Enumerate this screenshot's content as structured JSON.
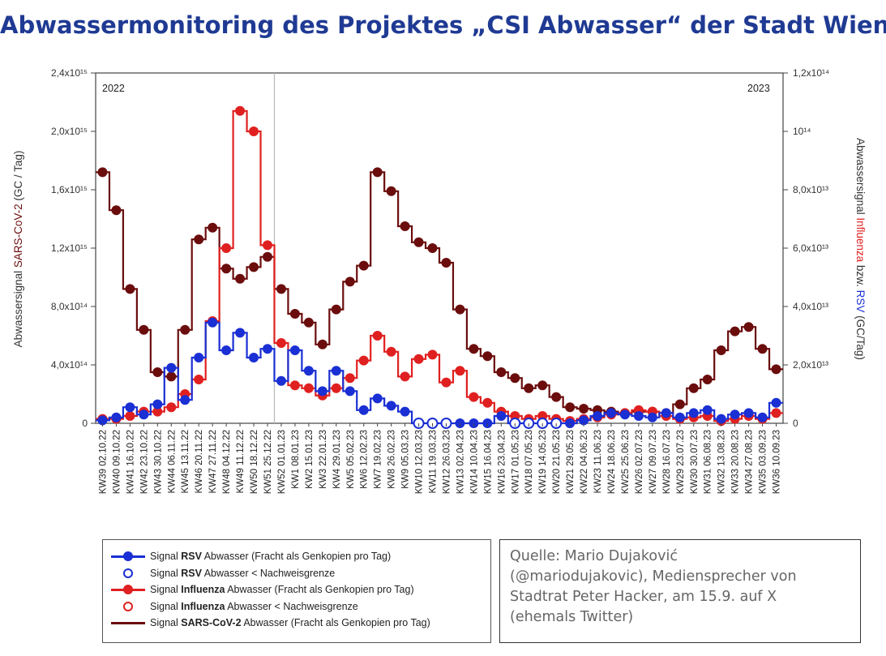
{
  "title": "Abwassermonitoring des Projektes „CSI Abwasser“ der Stadt Wien",
  "colors": {
    "rsv": "#1a2fd4",
    "influenza": "#e02020",
    "sars": "#6b0d0d",
    "title": "#1f3a93"
  },
  "chart_data": {
    "type": "line",
    "step": true,
    "categories": [
      "KW39 02.10.22",
      "KW40 09.10.22",
      "KW41 16.10.22",
      "KW42 23.10.22",
      "KW43 30.10.22",
      "KW44 06.11.22",
      "KW45 13.11.22",
      "KW46 20.11.22",
      "KW47 27.11.22",
      "KW48 04.12.22",
      "KW49 11.12.22",
      "KW50 18.12.22",
      "KW51 25.12.22",
      "KW52 01.01.23",
      "KW1 08.01.23",
      "KW2 15.01.23",
      "KW3 22.01.23",
      "KW4 29.01.23",
      "KW5 05.02.23",
      "KW6 12.02.23",
      "KW7 19.02.23",
      "KW8 26.02.23",
      "KW9 05.03.23",
      "KW10 12.03.23",
      "KW11 19.03.23",
      "KW12 26.03.23",
      "KW13 02.04.23",
      "KW14 10.04.23",
      "KW15 16.04.23",
      "KW16 23.04.23",
      "KW17 01.05.23",
      "KW18 07.05.23",
      "KW19 14.05.23",
      "KW20 21.05.23",
      "KW21 29.05.23",
      "KW22 04.06.23",
      "KW23 11.06.23",
      "KW24 18.06.23",
      "KW25 25.06.23",
      "KW26 02.07.23",
      "KW27 09.07.23",
      "KW28 16.07.23",
      "KW29 23.07.23",
      "KW30 30.07.23",
      "KW31 06.08.23",
      "KW32 13.08.23",
      "KW33 20.08.23",
      "KW34 27.08.23",
      "KW35 03.09.23",
      "KW36 10.09.23"
    ],
    "left_axis": {
      "label": "Abwassersignal SARS-CoV-2 (GC / Tag)",
      "label_plain": "Abwassersignal ",
      "label_colored": "SARS-CoV-2",
      "label_rest": " (GC / Tag)",
      "ylim": [
        0,
        2400000000000000.0
      ],
      "ticks": [
        0,
        400000000000000.0,
        800000000000000.0,
        1200000000000000.0,
        1600000000000000.0,
        2000000000000000.0,
        2400000000000000.0
      ],
      "tick_labels": [
        "0",
        "4,0x10¹⁴",
        "8,0x10¹⁴",
        "1,2x10¹⁵",
        "1,6x10¹⁵",
        "2,0x10¹⁵",
        "2,4x10¹⁵"
      ]
    },
    "right_axis": {
      "label_plain1": "Abwassersignal ",
      "label_flu": "Influenza",
      "label_plain2": " bzw. ",
      "label_rsv": "RSV",
      "label_rest": " (GC/Tag)",
      "ylim": [
        0,
        120000000000000.0
      ],
      "ticks": [
        0,
        20000000000000.0,
        40000000000000.0,
        60000000000000.0,
        80000000000000.0,
        100000000000000.0,
        120000000000000.0
      ],
      "tick_labels": [
        "0",
        "2,0x10¹³",
        "4,0x10¹³",
        "6,0x10¹³",
        "8,0x10¹³",
        "10¹⁴",
        "1,2x10¹⁴"
      ]
    },
    "year_labels": [
      "2022",
      "2023"
    ],
    "year_divider_after": "KW51 25.12.22",
    "series": [
      {
        "name": "Signal SARS-CoV-2 Abwasser (Fracht als Genkopien pro Tag)",
        "axis": "left",
        "color": "#6b0d0d",
        "values": [
          1720000000000000.0,
          1460000000000000.0,
          920000000000000.0,
          640000000000000.0,
          350000000000000.0,
          320000000000000.0,
          640000000000000.0,
          1260000000000000.0,
          1340000000000000.0,
          1060000000000000.0,
          990000000000000.0,
          1070000000000000.0,
          1140000000000000.0,
          920000000000000.0,
          750000000000000.0,
          690000000000000.0,
          540000000000000.0,
          780000000000000.0,
          970000000000000.0,
          1080000000000000.0,
          1720000000000000.0,
          1590000000000000.0,
          1350000000000000.0,
          1240000000000000.0,
          1200000000000000.0,
          1100000000000000.0,
          780000000000000.0,
          510000000000000.0,
          460000000000000.0,
          350000000000000.0,
          310000000000000.0,
          240000000000000.0,
          260000000000000.0,
          180000000000000.0,
          110000000000000.0,
          100000000000000.0,
          90000000000000.0,
          80000000000000.0,
          70000000000000.0,
          80000000000000.0,
          80000000000000.0,
          70000000000000.0,
          130000000000000.0,
          240000000000000.0,
          300000000000000.0,
          500000000000000.0,
          630000000000000.0,
          660000000000000.0,
          510000000000000.0,
          370000000000000.0
        ],
        "below_detection": []
      },
      {
        "name": "Signal Influenza Abwasser (Fracht als Genkopien pro Tag)",
        "axis": "right",
        "color": "#e02020",
        "values": [
          1500000000000.0,
          1500000000000.0,
          2500000000000.0,
          4000000000000.0,
          4000000000000.0,
          5500000000000.0,
          10000000000000.0,
          15000000000000.0,
          35000000000000.0,
          60000000000000.0,
          107000000000000.0,
          100000000000000.0,
          61000000000000.0,
          27500000000000.0,
          13000000000000.0,
          12000000000000.0,
          9500000000000.0,
          12000000000000.0,
          15500000000000.0,
          21500000000000.0,
          30000000000000.0,
          24500000000000.0,
          16000000000000.0,
          22000000000000.0,
          23500000000000.0,
          14000000000000.0,
          18000000000000.0,
          9000000000000.0,
          7000000000000.0,
          4000000000000.0,
          2500000000000.0,
          1500000000000.0,
          2500000000000.0,
          1500000000000.0,
          800000000000.0,
          1500000000000.0,
          2000000000000.0,
          3000000000000.0,
          3500000000000.0,
          4500000000000.0,
          4000000000000.0,
          2500000000000.0,
          1500000000000.0,
          2000000000000.0,
          2500000000000.0,
          800000000000.0,
          1500000000000.0,
          2500000000000.0,
          1500000000000.0,
          3500000000000.0
        ],
        "below_detection": []
      },
      {
        "name": "Signal RSV Abwasser (Fracht als Genkopien pro Tag)",
        "axis": "right",
        "color": "#1a2fd4",
        "values": [
          1000000000000.0,
          2000000000000.0,
          5500000000000.0,
          3000000000000.0,
          6500000000000.0,
          19000000000000.0,
          8000000000000.0,
          22500000000000.0,
          34500000000000.0,
          25000000000000.0,
          31000000000000.0,
          22500000000000.0,
          25500000000000.0,
          14500000000000.0,
          25000000000000.0,
          18000000000000.0,
          11000000000000.0,
          18000000000000.0,
          11000000000000.0,
          4500000000000.0,
          8500000000000.0,
          6000000000000.0,
          4000000000000.0,
          0,
          0,
          0,
          0,
          0,
          0,
          2500000000000.0,
          0,
          0,
          0,
          0,
          0,
          1000000000000.0,
          2500000000000.0,
          3500000000000.0,
          3000000000000.0,
          2500000000000.0,
          2000000000000.0,
          3500000000000.0,
          2000000000000.0,
          3500000000000.0,
          4500000000000.0,
          1500000000000.0,
          3000000000000.0,
          3500000000000.0,
          2000000000000.0,
          7000000000000.0
        ],
        "below_detection": [
          23,
          24,
          25,
          30,
          31,
          32,
          33
        ]
      }
    ]
  },
  "legend": {
    "items": [
      {
        "prefix": "Signal ",
        "bold": "RSV",
        "suffix": " Abwasser (Fracht als Genkopien pro Tag)",
        "kind": "line-filled",
        "color": "#1a2fd4"
      },
      {
        "prefix": "Signal ",
        "bold": "RSV",
        "suffix": " Abwasser < Nachweisgrenze",
        "kind": "open",
        "color": "#1a2fd4"
      },
      {
        "prefix": "Signal ",
        "bold": "Influenza",
        "suffix": " Abwasser (Fracht als Genkopien pro Tag)",
        "kind": "line-filled",
        "color": "#e02020"
      },
      {
        "prefix": "Signal ",
        "bold": "Influenza",
        "suffix": " Abwasser < Nachweisgrenze",
        "kind": "open",
        "color": "#e02020"
      },
      {
        "prefix": "Signal ",
        "bold": "SARS-CoV-2",
        "suffix": " Abwasser (Fracht als Genkopien pro Tag)",
        "kind": "line",
        "color": "#6b0d0d"
      }
    ]
  },
  "source": {
    "lines": [
      "Quelle: Mario Dujaković",
      "(@mariodujakovic), Mediensprecher von",
      "Stadtrat Peter Hacker, am 15.9. auf X",
      "(ehemals Twitter)"
    ]
  }
}
